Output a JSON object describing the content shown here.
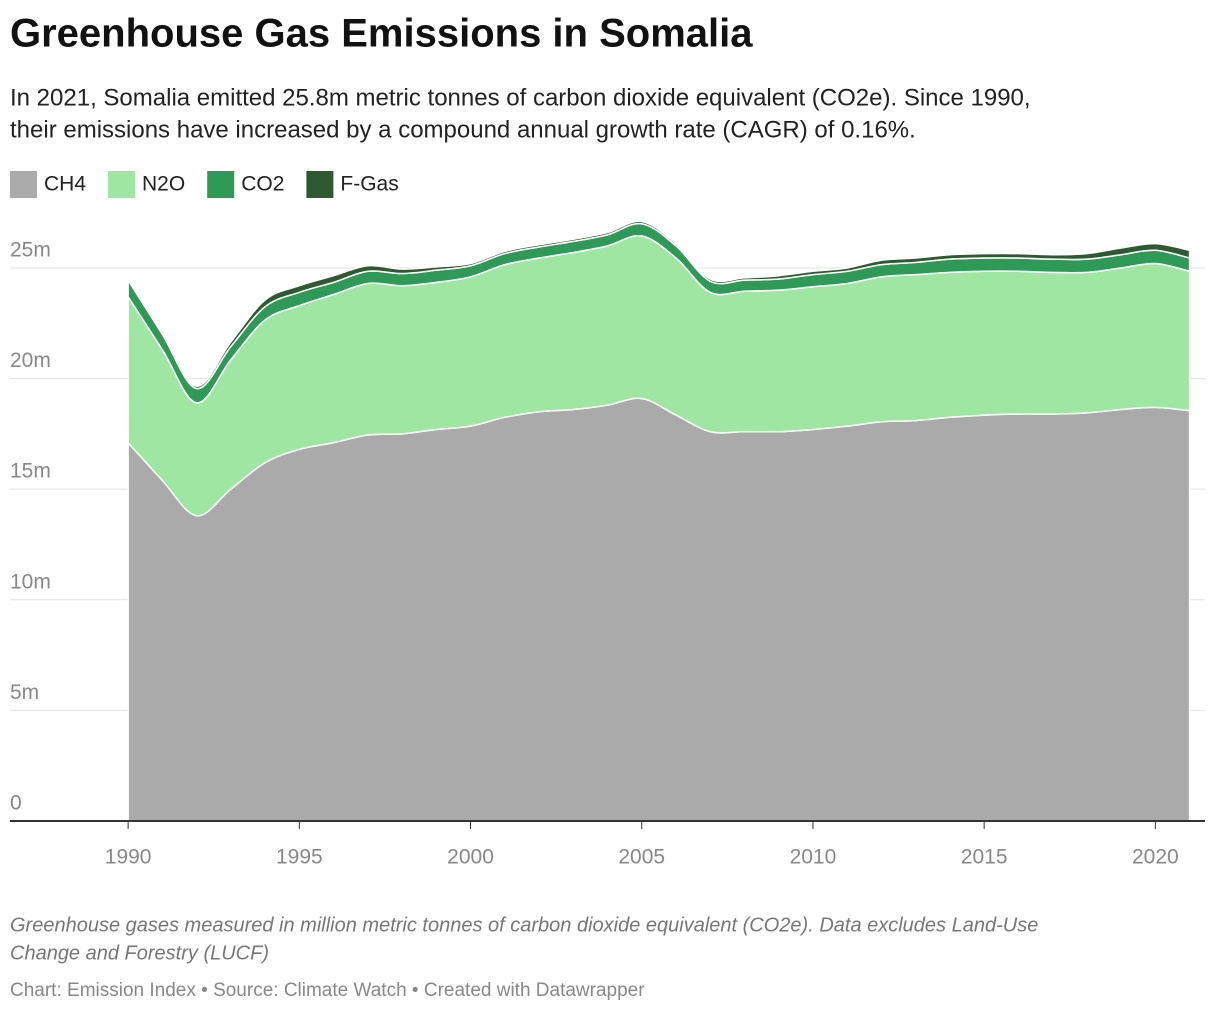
{
  "chart_data": {
    "type": "stacked-area",
    "title": "Greenhouse Gas Emissions in Somalia",
    "subtitle": [
      "In 2021, Somalia emitted 25.8m metric tonnes of carbon dioxide equivalent (CO2e). Since 1990,",
      "their emissions have increased by a compound annual growth rate (CAGR) of 0.16%."
    ],
    "notes": [
      "Greenhouse gases measured in million metric tonnes of carbon dioxide equivalent (CO2e). Data excludes Land-Use",
      "Change and Forestry (LUCF)"
    ],
    "source": "Chart: Emission Index • Source: Climate Watch • Created with Datawrapper",
    "x": [
      1990,
      1991,
      1992,
      1993,
      1994,
      1995,
      1996,
      1997,
      1998,
      1999,
      2000,
      2001,
      2002,
      2003,
      2004,
      2005,
      2006,
      2007,
      2008,
      2009,
      2010,
      2011,
      2012,
      2013,
      2014,
      2015,
      2016,
      2017,
      2018,
      2019,
      2020,
      2021
    ],
    "series": [
      {
        "name": "CH4",
        "color": "#aaaaaa",
        "values": [
          17.1,
          15.4,
          13.8,
          15.0,
          16.2,
          16.8,
          17.1,
          17.45,
          17.5,
          17.7,
          17.85,
          18.25,
          18.5,
          18.6,
          18.8,
          19.1,
          18.35,
          17.6,
          17.6,
          17.6,
          17.7,
          17.85,
          18.05,
          18.1,
          18.25,
          18.35,
          18.4,
          18.4,
          18.45,
          18.6,
          18.7,
          18.55
        ]
      },
      {
        "name": "N2O",
        "color": "#9ee6a1",
        "values": [
          6.6,
          5.9,
          5.1,
          5.85,
          6.45,
          6.5,
          6.7,
          6.85,
          6.7,
          6.65,
          6.75,
          6.9,
          6.95,
          7.1,
          7.2,
          7.35,
          7.1,
          6.3,
          6.35,
          6.4,
          6.45,
          6.45,
          6.55,
          6.6,
          6.55,
          6.5,
          6.45,
          6.4,
          6.35,
          6.4,
          6.5,
          6.3
        ]
      },
      {
        "name": "CO2",
        "color": "#2f9a57",
        "values": [
          0.75,
          0.7,
          0.65,
          0.6,
          0.6,
          0.6,
          0.55,
          0.55,
          0.55,
          0.55,
          0.5,
          0.5,
          0.5,
          0.5,
          0.5,
          0.55,
          0.55,
          0.5,
          0.5,
          0.5,
          0.55,
          0.55,
          0.55,
          0.55,
          0.6,
          0.6,
          0.6,
          0.6,
          0.6,
          0.6,
          0.6,
          0.6
        ]
      },
      {
        "name": "F-Gas",
        "color": "#2e5a32",
        "values": [
          0.02,
          0.05,
          0.1,
          0.2,
          0.3,
          0.3,
          0.3,
          0.25,
          0.2,
          0.15,
          0.1,
          0.1,
          0.1,
          0.1,
          0.1,
          0.1,
          0.1,
          0.1,
          0.1,
          0.15,
          0.15,
          0.15,
          0.2,
          0.2,
          0.2,
          0.2,
          0.2,
          0.2,
          0.25,
          0.3,
          0.3,
          0.35
        ]
      }
    ],
    "xlim": [
      1986.55,
      2021.45
    ],
    "xticks": [
      1990,
      1995,
      2000,
      2005,
      2010,
      2015,
      2020
    ],
    "ylim": [
      0,
      27.2
    ],
    "yticks": [
      0,
      {
        "value": 5,
        "label": "5m"
      },
      {
        "value": 10,
        "label": "10m"
      },
      {
        "value": 15,
        "label": "15m"
      },
      {
        "value": 20,
        "label": "20m"
      },
      {
        "value": 25,
        "label": "25m"
      }
    ],
    "grid": true
  }
}
